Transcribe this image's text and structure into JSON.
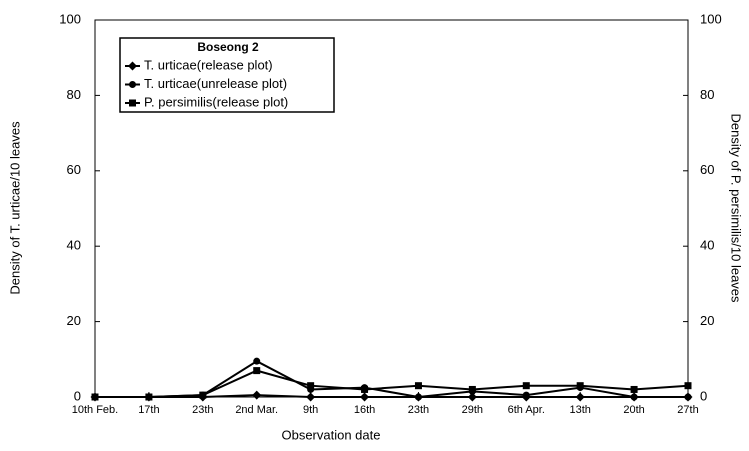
{
  "chart_data": {
    "type": "line",
    "legend_title": "Boseong 2",
    "xlabel": "Observation date",
    "ylabel": "Density of T. urticae/10 leaves",
    "y2label": "Density of P. persimilis/10 leaves",
    "categories": [
      "10th Feb.",
      "17th",
      "23th",
      "2nd Mar.",
      "9th",
      "16th",
      "23th",
      "29th",
      "6th Apr.",
      "13th",
      "20th",
      "27th"
    ],
    "series": [
      {
        "name": "T. urticae(release plot)",
        "color": "#000000",
        "marker": "diamond",
        "values": [
          0,
          0,
          0,
          0.5,
          0,
          0,
          0,
          0,
          0,
          0,
          0,
          0
        ]
      },
      {
        "name": "T. urticae(unrelease plot)",
        "color": "#000000",
        "marker": "circle",
        "values": [
          0,
          0,
          0.5,
          9.5,
          2,
          2.5,
          0,
          1.5,
          0.5,
          2.5,
          0,
          0
        ]
      },
      {
        "name": "P. persimilis(release plot)",
        "color": "#000000",
        "marker": "square",
        "axis": "y2",
        "values": [
          0,
          0,
          0.5,
          7,
          3,
          2,
          3,
          2,
          3,
          3,
          2,
          3
        ]
      }
    ],
    "ylim": [
      0,
      100
    ],
    "yticks": [
      0,
      20,
      40,
      60,
      80,
      100
    ],
    "y2lim": [
      0,
      100
    ],
    "y2ticks": [
      0,
      20,
      40,
      60,
      80,
      100
    ],
    "legend": "upper left"
  }
}
